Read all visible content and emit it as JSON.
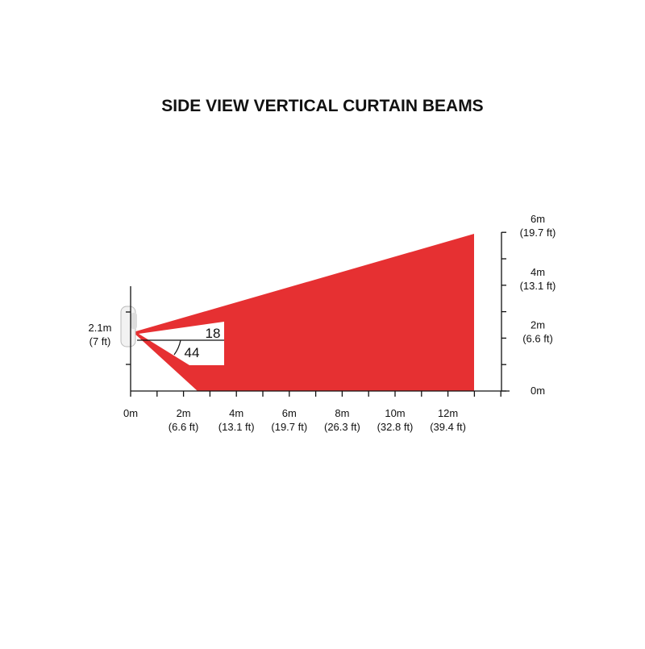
{
  "title": "SIDE VIEW VERTICAL CURTAIN BEAMS",
  "x_axis": [
    {
      "label": "0m"
    },
    {
      "label": "2m",
      "sub": "(6.6 ft)"
    },
    {
      "label": "4m",
      "sub": "(13.1 ft)"
    },
    {
      "label": "6m",
      "sub": "(19.7 ft)"
    },
    {
      "label": "8m",
      "sub": "(26.3 ft)"
    },
    {
      "label": "10m",
      "sub": "(32.8 ft)"
    },
    {
      "label": "12m",
      "sub": "(39.4 ft)"
    }
  ],
  "y_axis": [
    {
      "label": "0m"
    },
    {
      "label": "2m",
      "sub": "(6.6 ft)"
    },
    {
      "label": "4m",
      "sub": "(13.1 ft)"
    },
    {
      "label": "6m",
      "sub": "(19.7 ft)"
    }
  ],
  "mount_height": {
    "label": "2.1m",
    "sub": "(7 ft)"
  },
  "angles": {
    "upper": "18",
    "lower": "44"
  }
}
